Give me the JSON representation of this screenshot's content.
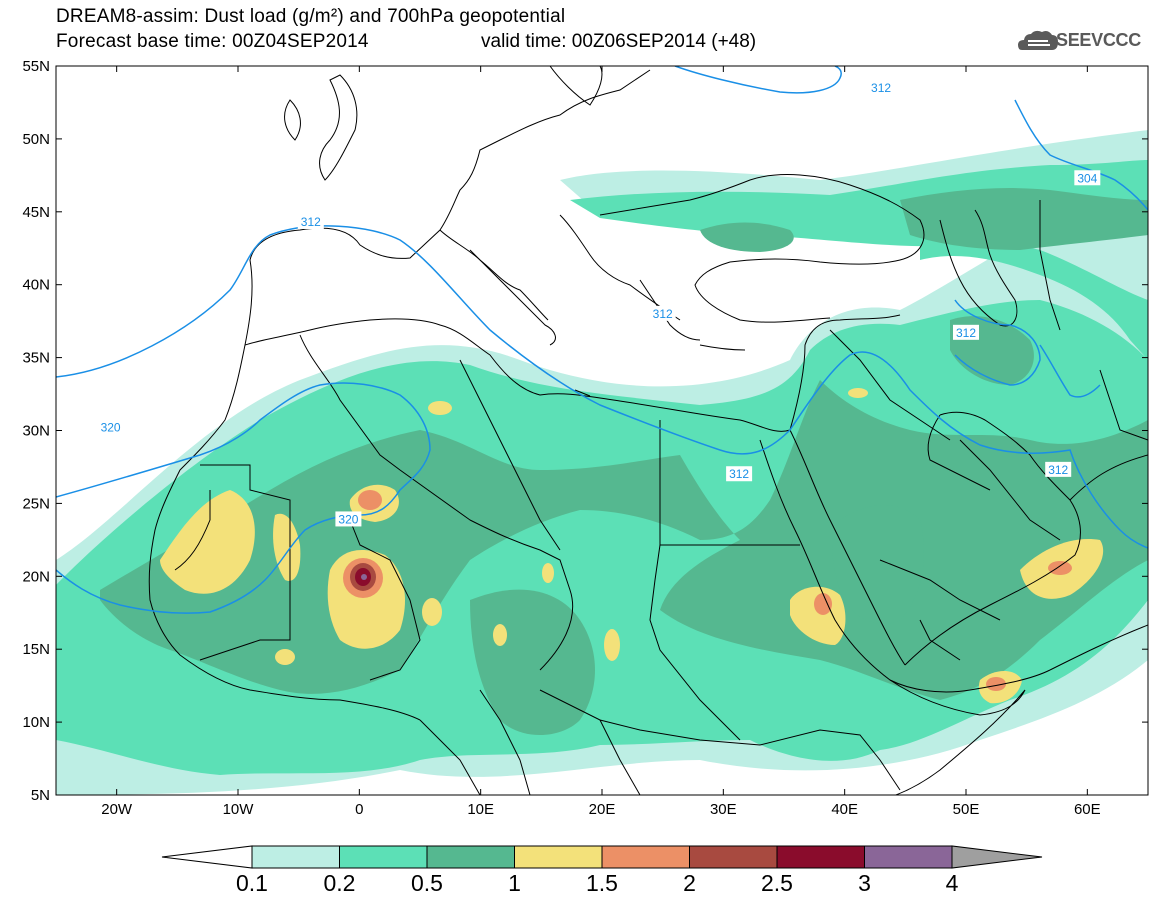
{
  "header": {
    "line1": "DREAM8-assim: Dust load (g/m²) and 700hPa geopotential",
    "line2_left": "Forecast base time: 00Z04SEP2014",
    "line2_right": "valid time: 00Z06SEP2014 (+48)"
  },
  "logo": {
    "text": "SEEVCCC",
    "icon": "cloud-logo-icon"
  },
  "axes": {
    "lat_labels": [
      "55N",
      "50N",
      "45N",
      "40N",
      "35N",
      "30N",
      "25N",
      "20N",
      "15N",
      "10N",
      "5N"
    ],
    "lon_labels": [
      "20W",
      "10W",
      "0",
      "10E",
      "20E",
      "30E",
      "40E",
      "50E",
      "60E"
    ]
  },
  "contour_labels": [
    {
      "text": "312",
      "lon": 43,
      "lat": 53.5
    },
    {
      "text": "304",
      "lon": 60,
      "lat": 47.3
    },
    {
      "text": "312",
      "lon": -4,
      "lat": 44.3
    },
    {
      "text": "312",
      "lon": 25,
      "lat": 38
    },
    {
      "text": "312",
      "lon": 50,
      "lat": 36.7
    },
    {
      "text": "320",
      "lon": -20.5,
      "lat": 30.2
    },
    {
      "text": "312",
      "lon": 31.3,
      "lat": 27
    },
    {
      "text": "312",
      "lon": 57.6,
      "lat": 27.3
    },
    {
      "text": "320",
      "lon": -0.9,
      "lat": 23.9
    }
  ],
  "colorbar": {
    "labels": [
      "0.1",
      "0.2",
      "0.5",
      "1",
      "1.5",
      "2",
      "2.5",
      "3",
      "4"
    ],
    "colors": [
      "#ffffff",
      "#bdeee4",
      "#5ce0b6",
      "#55b890",
      "#f3e17a",
      "#ec9066",
      "#a84a40",
      "#8a0c2c",
      "#8a6698",
      "#9f9f9f"
    ]
  },
  "palette": {
    "coast": "#000000",
    "contour": "#1a8fe6",
    "frame": "#000000"
  }
}
